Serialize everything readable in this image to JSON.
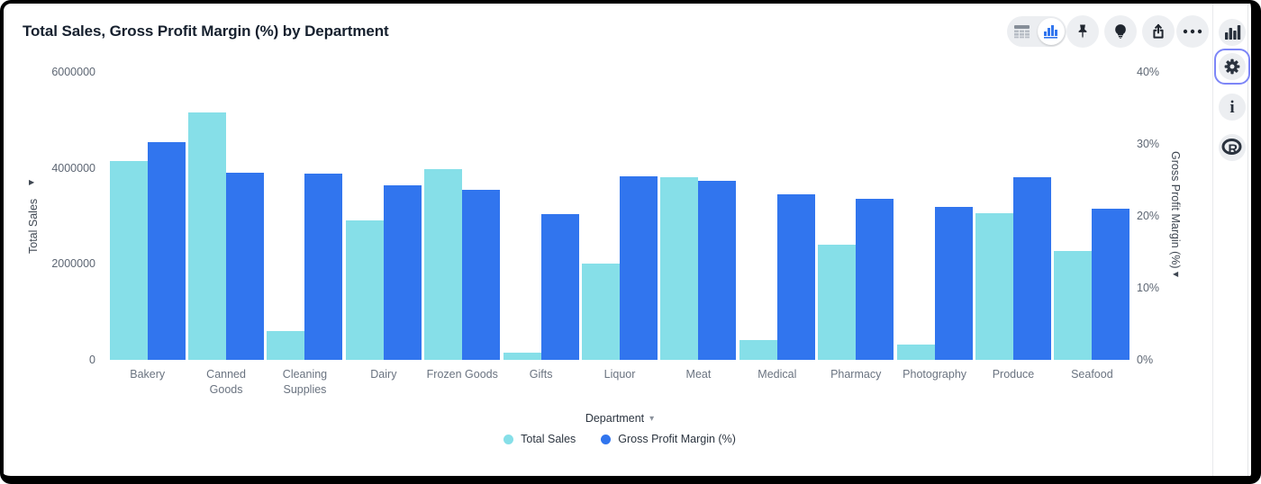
{
  "header": {
    "title": "Total Sales, Gross Profit Margin (%) by Department"
  },
  "toolbar": {
    "view_toggle": {
      "options": [
        "table-view",
        "chart-view"
      ],
      "selected": "chart-view"
    },
    "buttons": [
      {
        "name": "pin"
      },
      {
        "name": "explore-lightbulb"
      },
      {
        "name": "share-export"
      },
      {
        "name": "more-options"
      }
    ]
  },
  "sidebar": {
    "items": [
      {
        "name": "chart-panel",
        "selected": false
      },
      {
        "name": "settings",
        "selected": true
      },
      {
        "name": "info",
        "selected": false,
        "glyph": "i"
      },
      {
        "name": "r-logo",
        "selected": false,
        "glyph": "R"
      }
    ]
  },
  "chart_data": {
    "type": "bar",
    "title": "Total Sales, Gross Profit Margin (%) by Department",
    "categories": [
      "Bakery",
      "Canned Goods",
      "Cleaning Supplies",
      "Dairy",
      "Frozen Goods",
      "Gifts",
      "Liquor",
      "Meat",
      "Medical",
      "Pharmacy",
      "Photography",
      "Produce",
      "Seafood"
    ],
    "series": [
      {
        "name": "Total Sales",
        "axis": "left",
        "color": "#86DFE8",
        "values": [
          4150000,
          5150000,
          600000,
          2900000,
          3980000,
          150000,
          2000000,
          3810000,
          420000,
          2400000,
          320000,
          3060000,
          2260000
        ]
      },
      {
        "name": "Gross Profit Margin (%)",
        "axis": "right",
        "color": "#3175EE",
        "values": [
          30.2,
          26.0,
          25.9,
          24.3,
          23.6,
          20.2,
          25.5,
          24.9,
          23.0,
          22.4,
          21.2,
          25.4,
          21.0
        ]
      }
    ],
    "left_axis": {
      "title": "Total Sales",
      "ticks": [
        "0",
        "2000000",
        "4000000",
        "6000000"
      ],
      "lim": [
        0,
        6000000
      ]
    },
    "right_axis": {
      "title": "Gross Profit Margin (%)",
      "ticks": [
        "0%",
        "10%",
        "20%",
        "30%",
        "40%"
      ],
      "lim": [
        0,
        40
      ]
    },
    "x_axis": {
      "title": "Department"
    },
    "legend": {
      "position": "bottom"
    },
    "grid": false
  },
  "colors": {
    "accent_blue": "#3175EE",
    "accent_cyan": "#86DFE8",
    "selected_outline": "#7D86F7"
  }
}
